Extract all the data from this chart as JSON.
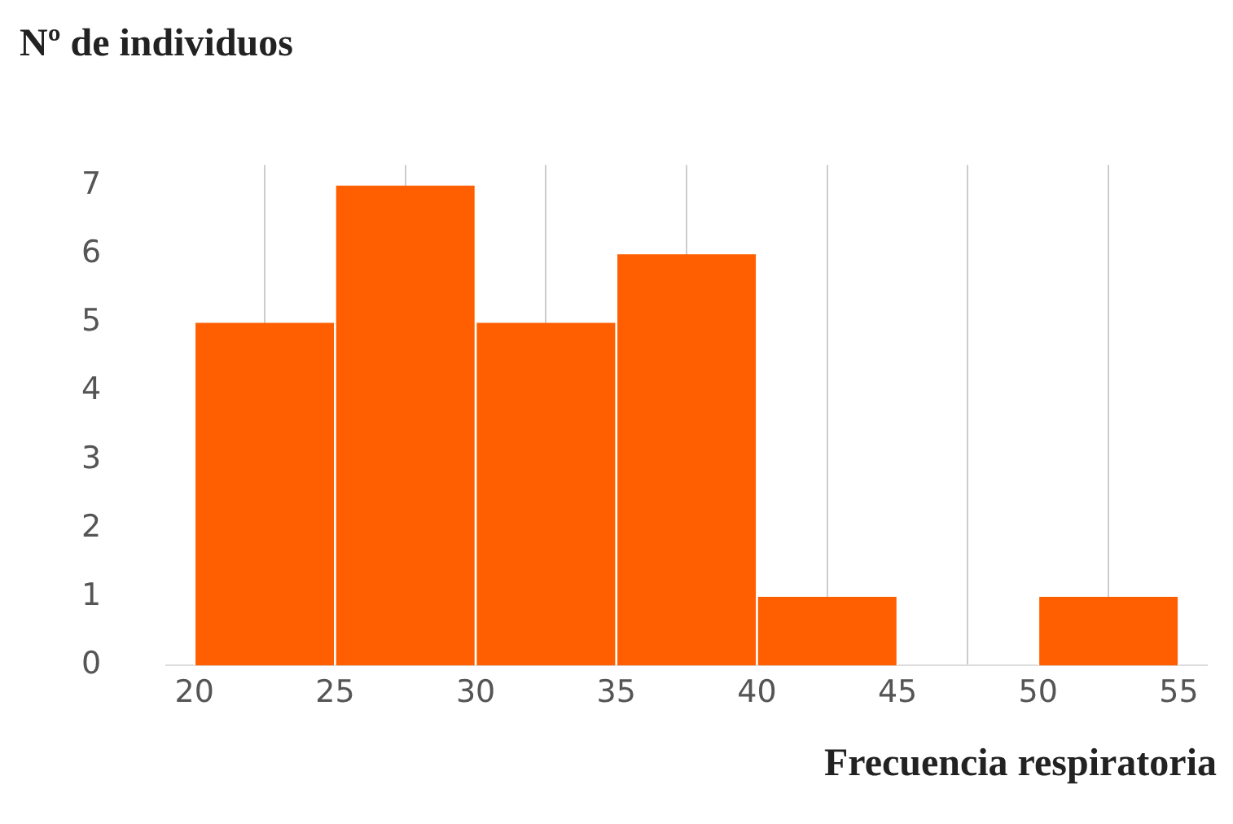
{
  "chart_data": {
    "type": "histogram",
    "title": "Nº de individuos",
    "xlabel": "Frecuencia respiratoria",
    "bins": [
      20,
      25,
      30,
      35,
      40,
      45,
      50,
      55
    ],
    "values": [
      5,
      7,
      5,
      6,
      1,
      0,
      1
    ],
    "color": "#ff5f00",
    "xlim": [
      19,
      56
    ],
    "xticks": [
      20,
      25,
      30,
      35,
      40,
      45,
      50,
      55
    ],
    "ylim": [
      0,
      7.3
    ],
    "yticks": [
      0,
      1,
      2,
      3,
      4,
      5,
      6,
      7
    ],
    "grid": "x",
    "legend": false
  }
}
